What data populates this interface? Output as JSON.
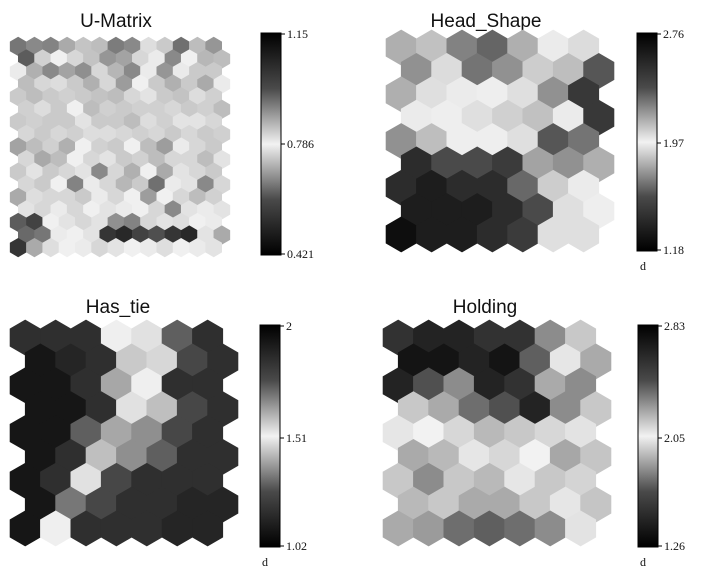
{
  "figure": {
    "panels": [
      {
        "title": "U-Matrix",
        "colorbar_ticks": [
          "1.15",
          "0.786",
          "0.421"
        ],
        "colorbar_unit": ""
      },
      {
        "title": "Head_Shape",
        "colorbar_ticks": [
          "2.76",
          "1.97",
          "1.18"
        ],
        "colorbar_unit": "d"
      },
      {
        "title": "Has_tie",
        "colorbar_ticks": [
          "2",
          "1.51",
          "1.02"
        ],
        "colorbar_unit": "d"
      },
      {
        "title": "Holding",
        "colorbar_ticks": [
          "2.83",
          "2.05",
          "1.26"
        ],
        "colorbar_unit": "d"
      }
    ]
  },
  "chart_data": [
    {
      "type": "heatmap",
      "subtype": "som-hexagonal-component-plane",
      "title": "U-Matrix",
      "colorbar": {
        "min": 0.421,
        "mid": 0.786,
        "max": 1.15,
        "colormap": "black-to-white-to-black (gray)"
      },
      "grid": {
        "rows": 17,
        "cols": 13
      },
      "values": [
        [
          0.98,
          0.95,
          0.96,
          0.9,
          0.86,
          0.7,
          0.6,
          0.95,
          0.82,
          0.72,
          0.99,
          0.87,
          0.93
        ],
        [
          0.55,
          0.84,
          0.78,
          0.74,
          0.71,
          0.64,
          0.66,
          0.74,
          0.8,
          0.62,
          0.78,
          0.88,
          0.7
        ],
        [
          0.8,
          0.68,
          0.62,
          0.66,
          0.63,
          0.74,
          0.69,
          0.62,
          0.8,
          0.64,
          0.77,
          0.72,
          0.72
        ],
        [
          0.7,
          0.74,
          0.75,
          0.72,
          0.68,
          0.74,
          0.65,
          0.78,
          0.72,
          0.68,
          0.85,
          0.9,
          0.8
        ],
        [
          0.72,
          0.7,
          0.72,
          0.73,
          0.72,
          0.71,
          0.7,
          0.74,
          0.76,
          0.72,
          0.71,
          0.75,
          0.73
        ],
        [
          0.73,
          0.75,
          0.72,
          0.78,
          0.7,
          0.73,
          0.72,
          0.73,
          0.73,
          0.74,
          0.72,
          0.73,
          0.7
        ],
        [
          0.72,
          0.73,
          0.72,
          0.72,
          0.76,
          0.72,
          0.72,
          0.7,
          0.75,
          0.73,
          0.76,
          0.76,
          0.74
        ],
        [
          0.74,
          0.72,
          0.74,
          0.73,
          0.75,
          0.75,
          0.74,
          0.73,
          0.74,
          0.72,
          0.74,
          0.72,
          0.73
        ],
        [
          0.66,
          0.7,
          0.73,
          0.68,
          0.78,
          0.84,
          0.72,
          0.78,
          0.7,
          0.92,
          0.8,
          0.74,
          0.72
        ],
        [
          0.74,
          0.67,
          0.7,
          0.78,
          0.74,
          0.76,
          0.72,
          0.84,
          0.7,
          0.74,
          0.74,
          0.7,
          0.76
        ],
        [
          0.72,
          0.76,
          0.72,
          0.74,
          0.76,
          0.95,
          0.74,
          0.68,
          0.78,
          0.9,
          0.76,
          0.74,
          0.72
        ],
        [
          0.74,
          0.72,
          0.78,
          0.96,
          0.8,
          0.74,
          0.88,
          0.72,
          0.99,
          0.8,
          0.76,
          0.95,
          0.74
        ],
        [
          0.9,
          0.82,
          0.74,
          0.74,
          0.72,
          0.8,
          0.74,
          0.78,
          0.92,
          0.78,
          0.74,
          0.7,
          0.84
        ],
        [
          0.76,
          0.74,
          0.8,
          0.74,
          0.78,
          0.76,
          0.8,
          0.78,
          0.74,
          0.95,
          0.76,
          0.8,
          0.76
        ],
        [
          1.02,
          1.06,
          0.78,
          0.76,
          0.74,
          0.76,
          0.94,
          0.96,
          0.74,
          0.76,
          0.82,
          0.78,
          0.8
        ],
        [
          1.0,
          0.98,
          0.8,
          0.78,
          0.76,
          1.08,
          1.1,
          1.06,
          1.04,
          1.08,
          1.1,
          0.76,
          0.9
        ],
        [
          1.08,
          0.9,
          0.82,
          0.78,
          0.8,
          0.74,
          0.76,
          0.78,
          0.8,
          0.82,
          0.78,
          0.8,
          0.76
        ]
      ]
    },
    {
      "type": "heatmap",
      "subtype": "som-hexagonal-component-plane",
      "title": "Head_Shape",
      "colorbar": {
        "min": 1.18,
        "mid": 1.97,
        "max": 2.76,
        "unit": "d",
        "colormap": "black-to-white-to-black (gray)"
      },
      "grid": {
        "rows": 9,
        "cols": 7
      },
      "values": [
        [
          2.2,
          1.8,
          2.35,
          2.45,
          2.2,
          2.0,
          2.05
        ],
        [
          2.3,
          2.05,
          2.4,
          2.3,
          2.1,
          2.15,
          2.5
        ],
        [
          2.2,
          1.9,
          2.0,
          1.95,
          1.9,
          2.3,
          2.6
        ],
        [
          2.0,
          1.95,
          1.9,
          1.85,
          1.8,
          2.0,
          2.6
        ],
        [
          2.3,
          2.15,
          1.95,
          1.95,
          1.9,
          2.5,
          2.4
        ],
        [
          1.3,
          1.4,
          1.4,
          1.35,
          1.7,
          2.3,
          2.2
        ],
        [
          1.3,
          1.25,
          1.3,
          1.3,
          1.5,
          2.1,
          2.0
        ],
        [
          1.25,
          1.25,
          1.25,
          1.3,
          1.4,
          1.9,
          1.95
        ],
        [
          1.2,
          1.25,
          1.25,
          1.3,
          1.35,
          1.9,
          1.9
        ]
      ]
    },
    {
      "type": "heatmap",
      "subtype": "som-hexagonal-component-plane",
      "title": "Has_tie",
      "colorbar": {
        "min": 1.02,
        "mid": 1.51,
        "max": 2,
        "unit": "d",
        "colormap": "black-to-white-to-black (gray)"
      },
      "grid": {
        "rows": 9,
        "cols": 7
      },
      "values": [
        [
          1.1,
          1.1,
          1.1,
          1.5,
          1.55,
          1.2,
          1.1
        ],
        [
          1.05,
          1.08,
          1.1,
          1.6,
          1.45,
          1.15,
          1.1
        ],
        [
          1.05,
          1.05,
          1.1,
          1.35,
          1.5,
          1.1,
          1.1
        ],
        [
          1.05,
          1.05,
          1.1,
          1.55,
          1.4,
          1.15,
          1.1
        ],
        [
          1.05,
          1.05,
          1.2,
          1.35,
          1.3,
          1.15,
          1.1
        ],
        [
          1.05,
          1.1,
          1.4,
          1.3,
          1.2,
          1.1,
          1.1
        ],
        [
          1.05,
          1.1,
          1.55,
          1.15,
          1.1,
          1.1,
          1.1
        ],
        [
          1.05,
          1.25,
          1.15,
          1.1,
          1.1,
          1.08,
          1.08
        ],
        [
          1.05,
          1.5,
          1.1,
          1.1,
          1.1,
          1.08,
          1.08
        ]
      ]
    },
    {
      "type": "heatmap",
      "subtype": "som-hexagonal-component-plane",
      "title": "Holding",
      "colorbar": {
        "min": 1.26,
        "mid": 2.05,
        "max": 2.83,
        "unit": "d",
        "colormap": "black-to-white-to-black (gray)"
      },
      "grid": {
        "rows": 9,
        "cols": 7
      },
      "values": [
        [
          1.4,
          1.35,
          1.35,
          1.4,
          1.4,
          1.7,
          1.9
        ],
        [
          1.3,
          1.3,
          1.35,
          1.3,
          1.55,
          2.0,
          1.8
        ],
        [
          1.35,
          1.5,
          1.7,
          1.35,
          1.4,
          1.8,
          1.7
        ],
        [
          1.9,
          1.8,
          1.6,
          1.5,
          1.35,
          1.7,
          1.9
        ],
        [
          2.0,
          2.05,
          1.95,
          1.85,
          1.9,
          1.95,
          2.1
        ],
        [
          1.8,
          1.85,
          2.0,
          1.95,
          2.05,
          2.3,
          2.2
        ],
        [
          1.9,
          1.7,
          1.9,
          1.85,
          2.0,
          1.9,
          2.15
        ],
        [
          1.85,
          1.9,
          1.8,
          1.8,
          1.9,
          2.0,
          2.2
        ],
        [
          1.8,
          1.75,
          1.6,
          1.55,
          1.6,
          1.7,
          2.1
        ]
      ]
    }
  ]
}
